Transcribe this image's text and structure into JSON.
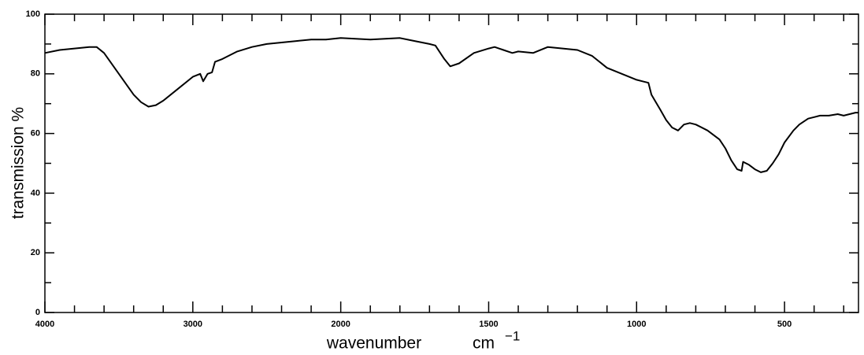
{
  "chart_data": {
    "type": "line",
    "ylabel": "transmission %",
    "xlabel": "wavenumber",
    "xunit": "cm",
    "xunit_power": "−1",
    "xlim": [
      4000,
      250
    ],
    "xscale": "piecewise",
    "xscale_break": 2000,
    "xscale_factor": 2,
    "xticks": [
      4000,
      3000,
      2000,
      1500,
      1000,
      500
    ],
    "xminorticks": [
      3800,
      3600,
      3400,
      3200,
      2800,
      2600,
      2400,
      2200,
      1900,
      1800,
      1700,
      1600,
      1400,
      1300,
      1200,
      1100,
      900,
      800,
      700,
      600,
      400,
      300
    ],
    "ylim": [
      0,
      100
    ],
    "yticks": [
      0,
      20,
      40,
      60,
      80,
      100
    ],
    "yminorticks": [
      10,
      30,
      50,
      70,
      90
    ],
    "grid": false,
    "series": [
      {
        "color": "#000000",
        "x": [
          4000,
          3900,
          3800,
          3700,
          3650,
          3600,
          3500,
          3400,
          3350,
          3300,
          3250,
          3200,
          3100,
          3000,
          2950,
          2930,
          2900,
          2870,
          2850,
          2800,
          2700,
          2600,
          2500,
          2400,
          2300,
          2200,
          2100,
          2000,
          1900,
          1800,
          1750,
          1700,
          1680,
          1650,
          1630,
          1600,
          1550,
          1500,
          1480,
          1450,
          1420,
          1400,
          1350,
          1300,
          1250,
          1200,
          1150,
          1100,
          1050,
          1000,
          980,
          960,
          950,
          920,
          900,
          880,
          860,
          840,
          820,
          800,
          760,
          720,
          700,
          680,
          660,
          645,
          640,
          620,
          600,
          580,
          560,
          540,
          520,
          500,
          470,
          450,
          420,
          400,
          380,
          350,
          320,
          300,
          260,
          250
        ],
        "values": [
          87,
          88,
          88.5,
          89,
          89,
          87,
          80,
          73,
          70.5,
          69,
          69.5,
          71,
          75,
          79,
          80,
          77.5,
          80,
          80.5,
          84,
          85,
          87.5,
          89,
          90,
          90.5,
          91,
          91.5,
          91.5,
          92,
          91.5,
          92,
          91,
          90,
          89.5,
          85,
          82.5,
          83.5,
          87,
          88.5,
          89,
          88,
          87,
          87.5,
          87,
          89,
          88.5,
          88,
          86,
          82,
          80,
          78,
          77.5,
          77,
          73,
          68,
          64.5,
          62,
          61,
          63,
          63.5,
          63,
          61,
          58,
          55,
          51,
          48,
          47.5,
          50.5,
          49.5,
          48,
          47,
          47.5,
          50,
          53,
          57,
          61,
          63,
          65,
          65.5,
          66,
          66,
          66.5,
          66,
          67,
          67
        ]
      }
    ]
  }
}
